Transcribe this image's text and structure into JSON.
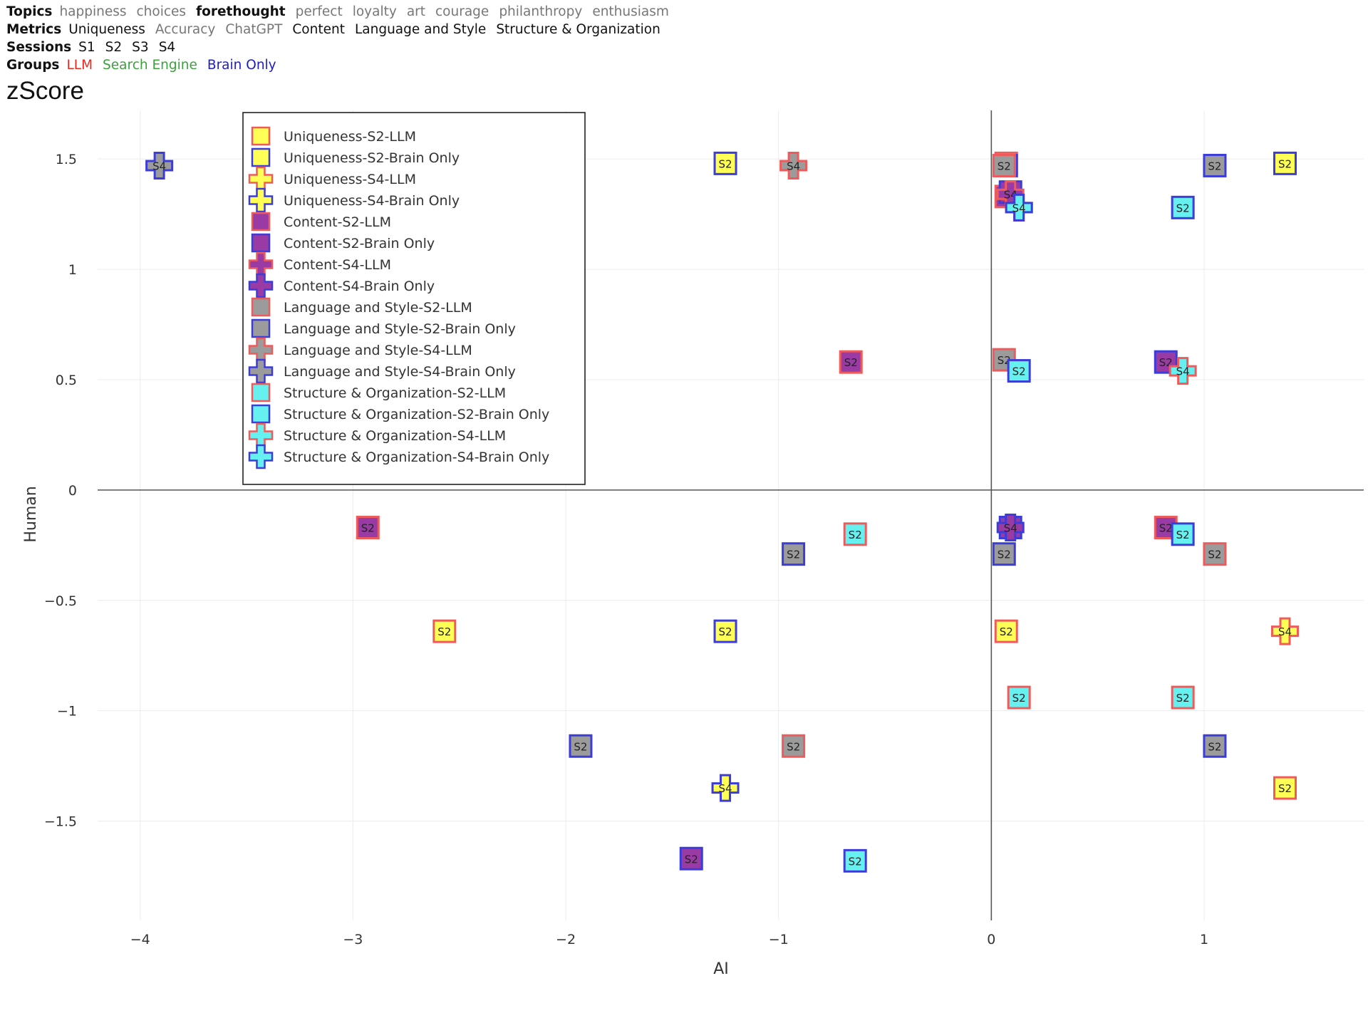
{
  "filters": {
    "topics": {
      "label": "Topics",
      "items": [
        {
          "label": "happiness",
          "active": false
        },
        {
          "label": "choices",
          "active": false
        },
        {
          "label": "forethought",
          "active": true,
          "bold": true
        },
        {
          "label": "perfect",
          "active": false
        },
        {
          "label": "loyalty",
          "active": false
        },
        {
          "label": "art",
          "active": false
        },
        {
          "label": "courage",
          "active": false
        },
        {
          "label": "philanthropy",
          "active": false
        },
        {
          "label": "enthusiasm",
          "active": false
        }
      ]
    },
    "metrics": {
      "label": "Metrics",
      "items": [
        {
          "label": "Uniqueness",
          "active": true
        },
        {
          "label": "Accuracy",
          "active": false
        },
        {
          "label": "ChatGPT",
          "active": false
        },
        {
          "label": "Content",
          "active": true
        },
        {
          "label": "Language and Style",
          "active": true
        },
        {
          "label": "Structure & Organization",
          "active": true
        }
      ]
    },
    "sessions": {
      "label": "Sessions",
      "items": [
        {
          "label": "S1",
          "active": true
        },
        {
          "label": "S2",
          "active": true
        },
        {
          "label": "S3",
          "active": true
        },
        {
          "label": "S4",
          "active": true
        }
      ]
    },
    "groups": {
      "label": "Groups",
      "items": [
        {
          "label": "LLM",
          "active": true,
          "color": "#e8281f"
        },
        {
          "label": "Search Engine",
          "active": true,
          "color": "#3aa23a"
        },
        {
          "label": "Brain Only",
          "active": true,
          "color": "#1c1ccc"
        }
      ]
    }
  },
  "page_title": "zScore",
  "colors": {
    "metric_fill": {
      "Uniqueness": "#ffff55",
      "Content": "#9a3aa4",
      "Language and Style": "#9b9b9b",
      "Structure & Organization": "#66f0f0"
    },
    "group_stroke": {
      "LLM": "#ef5b5b",
      "Brain Only": "#3c3cd8"
    },
    "grid": "#ececec",
    "axis_zero": "#555555"
  },
  "chart_data": {
    "type": "scatter",
    "title": "zScore",
    "xlabel": "AI",
    "ylabel": "Human",
    "xlim": [
      -4.2,
      1.75
    ],
    "ylim": [
      -1.95,
      1.72
    ],
    "xticks": [
      {
        "value": -4,
        "label": "−4"
      },
      {
        "value": -3,
        "label": "−3"
      },
      {
        "value": -2,
        "label": "−2"
      },
      {
        "value": -1,
        "label": "−1"
      },
      {
        "value": 0,
        "label": "0"
      },
      {
        "value": 1,
        "label": "1"
      }
    ],
    "yticks": [
      {
        "value": 1.5,
        "label": "1.5"
      },
      {
        "value": 1,
        "label": "1"
      },
      {
        "value": 0.5,
        "label": "0.5"
      },
      {
        "value": 0,
        "label": "0"
      },
      {
        "value": -0.5,
        "label": "−0.5"
      },
      {
        "value": -1,
        "label": "−1"
      },
      {
        "value": -1.5,
        "label": "−1.5"
      }
    ],
    "legend_position": "top-left",
    "series": [
      {
        "name": "Uniqueness-S2-LLM",
        "metric": "Uniqueness",
        "session": "S2",
        "group": "LLM",
        "marker": "square",
        "points": [
          {
            "x": -2.57,
            "y": -0.64
          },
          {
            "x": 0.07,
            "y": -0.64
          },
          {
            "x": 1.38,
            "y": -1.35
          },
          {
            "x": 0.07,
            "y": 1.48
          }
        ]
      },
      {
        "name": "Uniqueness-S2-Brain Only",
        "metric": "Uniqueness",
        "session": "S2",
        "group": "Brain Only",
        "marker": "square",
        "points": [
          {
            "x": -1.25,
            "y": 1.48
          },
          {
            "x": -1.25,
            "y": -0.64
          },
          {
            "x": 1.38,
            "y": 1.48
          },
          {
            "x": 0.07,
            "y": 1.47
          }
        ]
      },
      {
        "name": "Uniqueness-S4-LLM",
        "metric": "Uniqueness",
        "session": "S4",
        "group": "LLM",
        "marker": "cross",
        "points": [
          {
            "x": 1.38,
            "y": -0.64
          },
          {
            "x": 0.13,
            "y": 1.28
          }
        ]
      },
      {
        "name": "Uniqueness-S4-Brain Only",
        "metric": "Uniqueness",
        "session": "S4",
        "group": "Brain Only",
        "marker": "cross",
        "points": [
          {
            "x": -1.25,
            "y": -1.35
          }
        ]
      },
      {
        "name": "Content-S2-LLM",
        "metric": "Content",
        "session": "S2",
        "group": "LLM",
        "marker": "square",
        "points": [
          {
            "x": -2.93,
            "y": -0.17
          },
          {
            "x": -0.66,
            "y": 0.58
          },
          {
            "x": 0.82,
            "y": -0.17
          },
          {
            "x": 0.07,
            "y": 1.33
          }
        ]
      },
      {
        "name": "Content-S2-Brain Only",
        "metric": "Content",
        "session": "S2",
        "group": "Brain Only",
        "marker": "square",
        "points": [
          {
            "x": -1.41,
            "y": -1.67
          },
          {
            "x": 0.82,
            "y": 0.58
          },
          {
            "x": 0.09,
            "y": 1.35
          },
          {
            "x": 0.09,
            "y": -0.17
          }
        ]
      },
      {
        "name": "Content-S4-LLM",
        "metric": "Content",
        "session": "S4",
        "group": "LLM",
        "marker": "cross",
        "points": [
          {
            "x": 0.09,
            "y": 1.34
          }
        ]
      },
      {
        "name": "Content-S4-Brain Only",
        "metric": "Content",
        "session": "S4",
        "group": "Brain Only",
        "marker": "cross",
        "points": [
          {
            "x": 0.09,
            "y": -0.17
          }
        ]
      },
      {
        "name": "Language and Style-S2-LLM",
        "metric": "Language and Style",
        "session": "S2",
        "group": "LLM",
        "marker": "square",
        "points": [
          {
            "x": -0.93,
            "y": -1.16
          },
          {
            "x": 1.05,
            "y": -0.29
          },
          {
            "x": 0.06,
            "y": 0.59
          },
          {
            "x": 0.06,
            "y": 1.47
          }
        ]
      },
      {
        "name": "Language and Style-S2-Brain Only",
        "metric": "Language and Style",
        "session": "S2",
        "group": "Brain Only",
        "marker": "square",
        "points": [
          {
            "x": -1.93,
            "y": -1.16
          },
          {
            "x": -0.93,
            "y": -0.29
          },
          {
            "x": 1.05,
            "y": -1.16
          },
          {
            "x": 1.05,
            "y": 1.47
          },
          {
            "x": 0.06,
            "y": -0.29
          }
        ]
      },
      {
        "name": "Language and Style-S4-LLM",
        "metric": "Language and Style",
        "session": "S4",
        "group": "LLM",
        "marker": "cross",
        "points": [
          {
            "x": -0.93,
            "y": 1.47
          }
        ]
      },
      {
        "name": "Language and Style-S4-Brain Only",
        "metric": "Language and Style",
        "session": "S4",
        "group": "Brain Only",
        "marker": "cross",
        "points": [
          {
            "x": -3.91,
            "y": 1.47
          }
        ]
      },
      {
        "name": "Structure & Organization-S2-LLM",
        "metric": "Structure & Organization",
        "session": "S2",
        "group": "LLM",
        "marker": "square",
        "points": [
          {
            "x": -0.64,
            "y": -0.2
          },
          {
            "x": 0.13,
            "y": -0.94
          },
          {
            "x": 0.9,
            "y": -0.94
          }
        ]
      },
      {
        "name": "Structure & Organization-S2-Brain Only",
        "metric": "Structure & Organization",
        "session": "S2",
        "group": "Brain Only",
        "marker": "square",
        "points": [
          {
            "x": -0.64,
            "y": -1.68
          },
          {
            "x": 0.9,
            "y": 1.28
          },
          {
            "x": 0.13,
            "y": 0.54
          },
          {
            "x": 0.9,
            "y": -0.2
          }
        ]
      },
      {
        "name": "Structure & Organization-S4-LLM",
        "metric": "Structure & Organization",
        "session": "S4",
        "group": "LLM",
        "marker": "cross",
        "points": [
          {
            "x": 0.9,
            "y": 0.54
          }
        ]
      },
      {
        "name": "Structure & Organization-S4-Brain Only",
        "metric": "Structure & Organization",
        "session": "S4",
        "group": "Brain Only",
        "marker": "cross",
        "points": [
          {
            "x": 0.13,
            "y": 1.28
          }
        ]
      }
    ]
  }
}
